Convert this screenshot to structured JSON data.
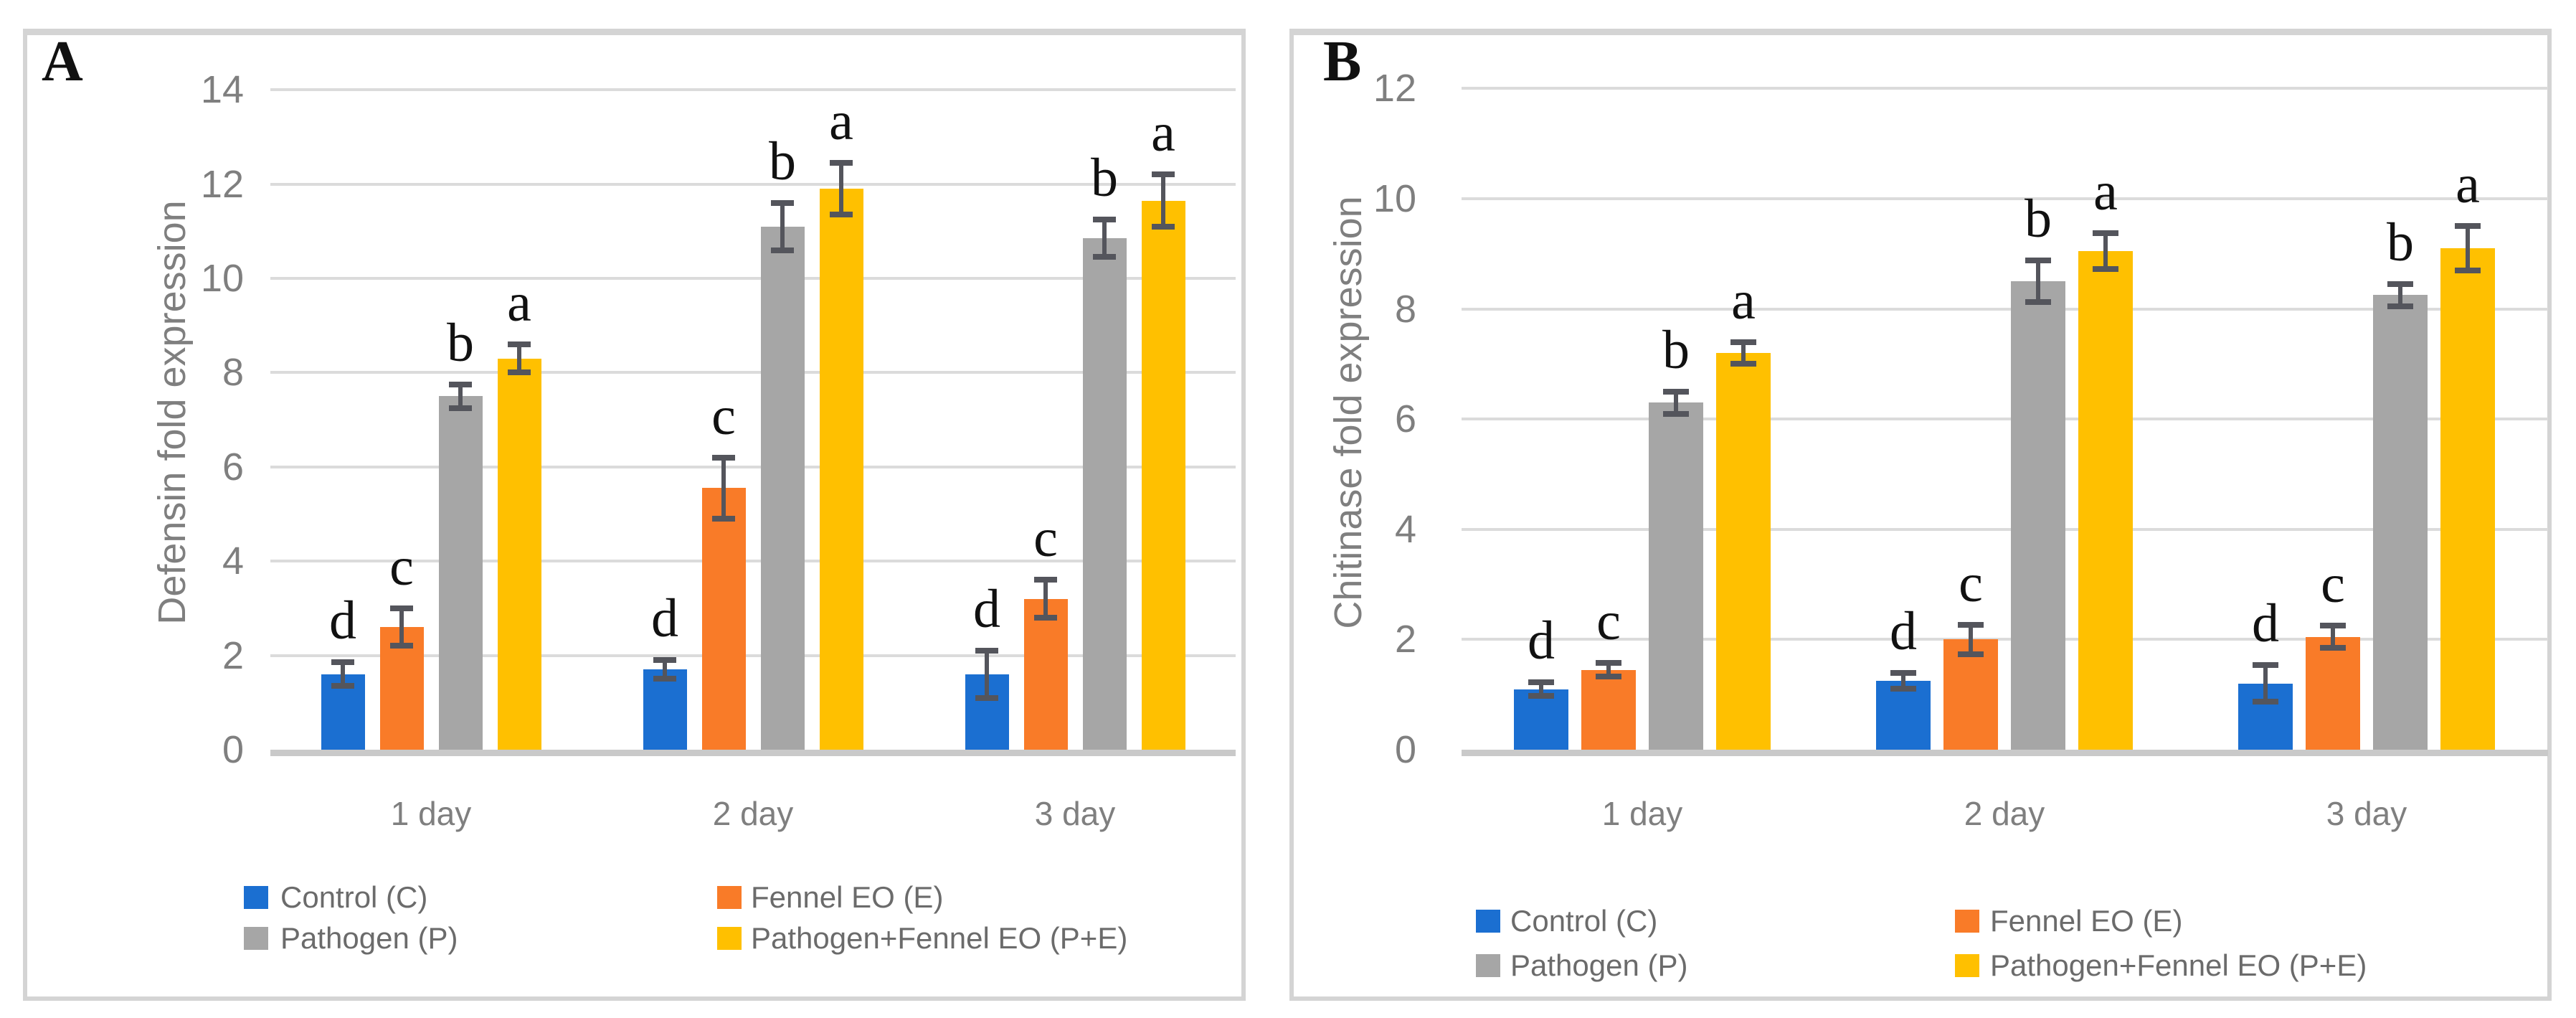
{
  "figure": {
    "panels": [
      {
        "label": "A"
      },
      {
        "label": "B"
      }
    ],
    "styles": {
      "background": "#FFFFFF",
      "panel_border": "#D4D4D4",
      "grid_color": "#DBDBDB",
      "axis_line_color": "#C9C9C9",
      "axis_text_color": "#7F7F7F",
      "legend_text_color": "#6B6B6B",
      "error_bar_color": "#54555C",
      "sig_letter_color": "#111111"
    }
  },
  "chart_data": [
    {
      "type": "bar",
      "panel": "A",
      "title": "",
      "xlabel": "",
      "ylabel": "Defensin fold expression",
      "categories": [
        "1 day",
        "2 day",
        "3 day"
      ],
      "ylim": [
        0,
        14
      ],
      "yticks": [
        0,
        2,
        4,
        6,
        8,
        10,
        12,
        14
      ],
      "grid": true,
      "legend_position": "bottom",
      "series": [
        {
          "name": "Control (C)",
          "color": "#1B6FD1",
          "values": [
            1.6,
            1.7,
            1.6
          ],
          "errors": [
            0.25,
            0.2,
            0.5
          ],
          "sig_letters": [
            "d",
            "d",
            "d"
          ]
        },
        {
          "name": "Fennel EO (E)",
          "color": "#F97B28",
          "values": [
            2.6,
            5.55,
            3.2
          ],
          "errors": [
            0.4,
            0.65,
            0.4
          ],
          "sig_letters": [
            "c",
            "c",
            "c"
          ]
        },
        {
          "name": "Pathogen (P)",
          "color": "#A6A6A6",
          "values": [
            7.5,
            11.1,
            10.85
          ],
          "errors": [
            0.25,
            0.5,
            0.4
          ],
          "sig_letters": [
            "b",
            "b",
            "b"
          ]
        },
        {
          "name": "Pathogen+Fennel EO (P+E)",
          "color": "#FFC000",
          "values": [
            8.3,
            11.9,
            11.65
          ],
          "errors": [
            0.3,
            0.55,
            0.55
          ],
          "sig_letters": [
            "a",
            "a",
            "a"
          ]
        }
      ]
    },
    {
      "type": "bar",
      "panel": "B",
      "title": "",
      "xlabel": "",
      "ylabel": "Chitinase fold expression",
      "categories": [
        "1 day",
        "2 day",
        "3 day"
      ],
      "ylim": [
        0,
        12
      ],
      "yticks": [
        0,
        2,
        4,
        6,
        8,
        10,
        12
      ],
      "grid": true,
      "legend_position": "bottom",
      "series": [
        {
          "name": "Control (C)",
          "color": "#1B6FD1",
          "values": [
            1.1,
            1.25,
            1.2
          ],
          "errors": [
            0.12,
            0.14,
            0.33
          ],
          "sig_letters": [
            "d",
            "d",
            "d"
          ]
        },
        {
          "name": "Fennel EO (E)",
          "color": "#F97B28",
          "values": [
            1.45,
            2.0,
            2.05
          ],
          "errors": [
            0.12,
            0.27,
            0.2
          ],
          "sig_letters": [
            "c",
            "c",
            "c"
          ]
        },
        {
          "name": "Pathogen (P)",
          "color": "#A6A6A6",
          "values": [
            6.3,
            8.5,
            8.25
          ],
          "errors": [
            0.2,
            0.38,
            0.2
          ],
          "sig_letters": [
            "b",
            "b",
            "b"
          ]
        },
        {
          "name": "Pathogen+Fennel EO (P+E)",
          "color": "#FFC000",
          "values": [
            7.2,
            9.05,
            9.1
          ],
          "errors": [
            0.2,
            0.33,
            0.4
          ],
          "sig_letters": [
            "a",
            "a",
            "a"
          ]
        }
      ]
    }
  ]
}
